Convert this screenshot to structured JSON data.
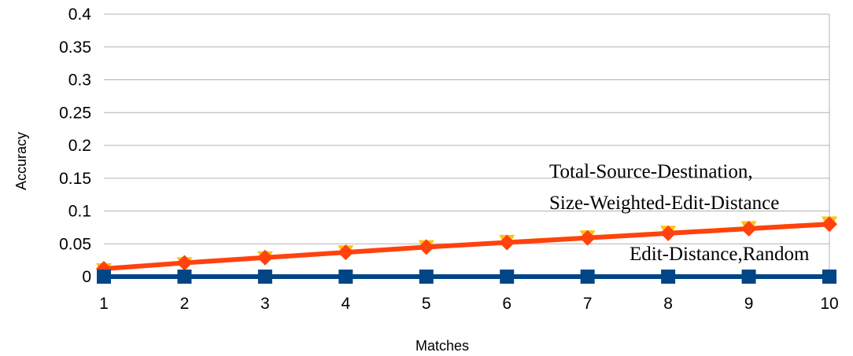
{
  "chart_data": {
    "type": "line",
    "xlabel": "Matches",
    "ylabel": "Accuracy",
    "x": [
      1,
      2,
      3,
      4,
      5,
      6,
      7,
      8,
      9,
      10
    ],
    "ylim": [
      0,
      0.4
    ],
    "y_ticks": [
      "0",
      "0.05",
      "0.1",
      "0.15",
      "0.2",
      "0.25",
      "0.3",
      "0.35",
      "0.4"
    ],
    "x_ticks": [
      "1",
      "2",
      "3",
      "4",
      "5",
      "6",
      "7",
      "8",
      "9",
      "10"
    ],
    "grid": "horizontal",
    "series": [
      {
        "color": "#ffc20e",
        "marker": "triangle-down",
        "values": [
          0.011,
          0.02,
          0.029,
          0.038,
          0.046,
          0.054,
          0.061,
          0.068,
          0.075,
          0.082
        ]
      },
      {
        "color": "#ff420e",
        "marker": "diamond",
        "values": [
          0.012,
          0.021,
          0.029,
          0.037,
          0.045,
          0.052,
          0.059,
          0.066,
          0.073,
          0.08
        ]
      },
      {
        "color": "#004586",
        "marker": "square",
        "values": [
          0,
          0,
          0,
          0,
          0,
          0,
          0,
          0,
          0,
          0
        ]
      }
    ],
    "annotations": [
      {
        "text": "Total-Source-Destination,"
      },
      {
        "text": "Size-Weighted-Edit-Distance"
      },
      {
        "text": "Edit-Distance,Random"
      }
    ]
  }
}
